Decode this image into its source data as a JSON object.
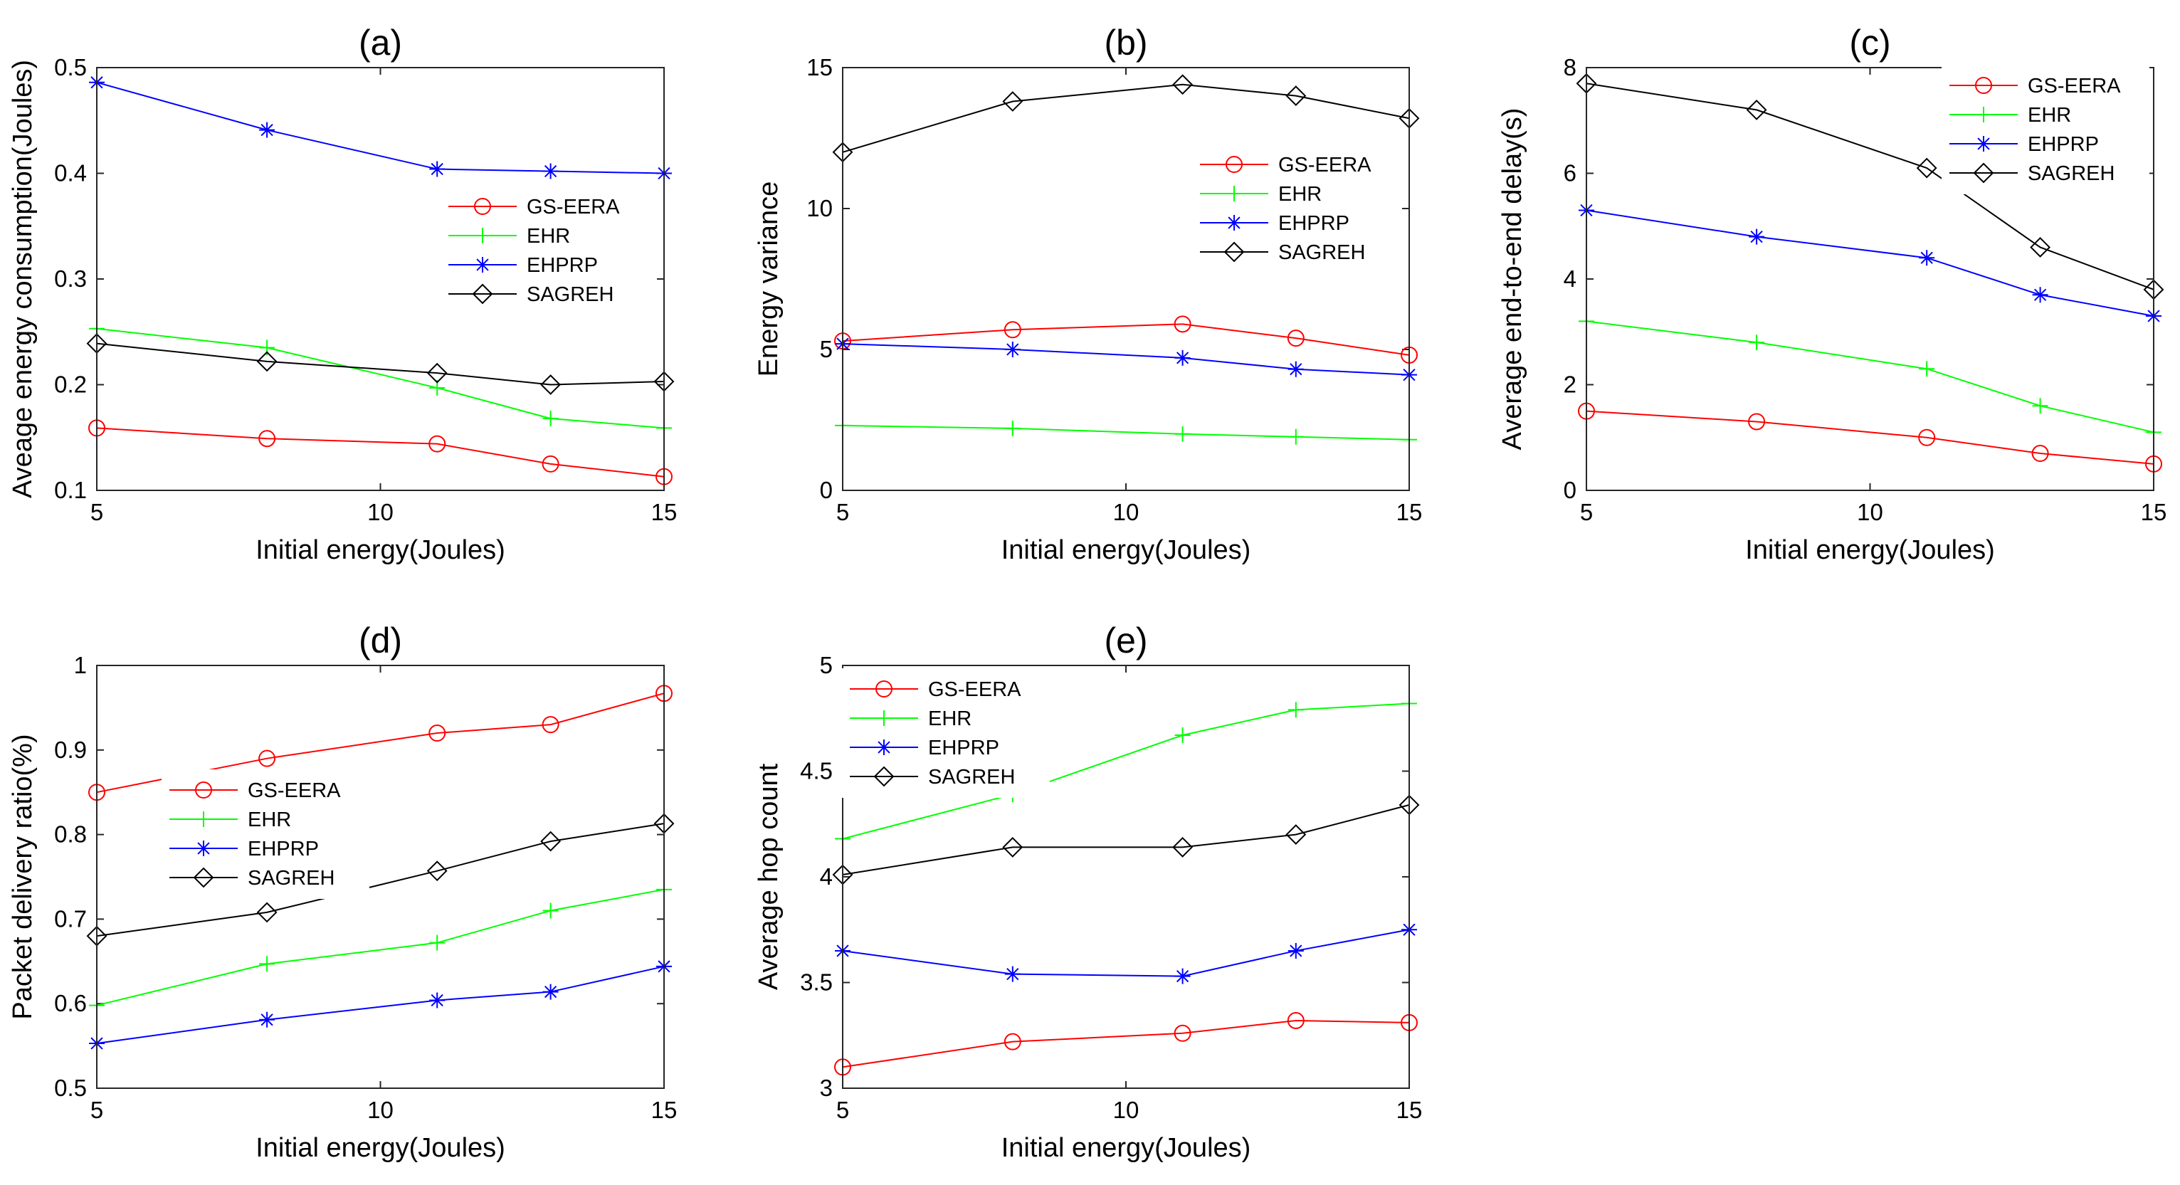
{
  "colors": {
    "GS-EERA": "#ff0000",
    "EHR": "#00ff00",
    "EHPRP": "#0000ff",
    "SAGREH": "#000000"
  },
  "markers": {
    "GS-EERA": "circle",
    "EHR": "plus",
    "EHPRP": "asterisk",
    "SAGREH": "diamond"
  },
  "chart_data": [
    {
      "type": "line",
      "title": "(a)",
      "xlabel": "Initial energy(Joules)",
      "ylabel": "Aveage energy consumption(Joules)",
      "xlim": [
        5,
        15
      ],
      "ylim": [
        0.1,
        0.5
      ],
      "xticks": [
        "5",
        "10",
        "15"
      ],
      "yticks": [
        "0.1",
        "0.2",
        "0.3",
        "0.4",
        "0.5"
      ],
      "legend_position": "middle-right",
      "x": [
        5,
        8,
        11,
        13,
        15
      ],
      "series": [
        {
          "name": "GS-EERA",
          "values": [
            0.159,
            0.149,
            0.144,
            0.125,
            0.113
          ]
        },
        {
          "name": "EHR",
          "values": [
            0.253,
            0.235,
            0.197,
            0.168,
            0.159
          ]
        },
        {
          "name": "EHPRP",
          "values": [
            0.486,
            0.441,
            0.404,
            0.402,
            0.4
          ]
        },
        {
          "name": "SAGREH",
          "values": [
            0.239,
            0.222,
            0.211,
            0.2,
            0.203
          ]
        }
      ]
    },
    {
      "type": "line",
      "title": "(b)",
      "xlabel": "Initial energy(Joules)",
      "ylabel": "Energy variance",
      "xlim": [
        5,
        15
      ],
      "ylim": [
        0,
        15
      ],
      "xticks": [
        "5",
        "10",
        "15"
      ],
      "yticks": [
        "0",
        "5",
        "10",
        "15"
      ],
      "legend_position": "upper-right",
      "x": [
        5,
        8,
        11,
        13,
        15
      ],
      "series": [
        {
          "name": "GS-EERA",
          "values": [
            5.3,
            5.7,
            5.9,
            5.4,
            4.8
          ]
        },
        {
          "name": "EHR",
          "values": [
            2.3,
            2.2,
            2.0,
            1.9,
            1.8
          ]
        },
        {
          "name": "EHPRP",
          "values": [
            5.2,
            5.0,
            4.7,
            4.3,
            4.1
          ]
        },
        {
          "name": "SAGREH",
          "values": [
            12.0,
            13.8,
            14.4,
            14.0,
            13.2
          ]
        }
      ]
    },
    {
      "type": "line",
      "title": "(c)",
      "xlabel": "Initial energy(Joules)",
      "ylabel": "Average end-to-end delay(s)",
      "xlim": [
        5,
        15
      ],
      "ylim": [
        0,
        8
      ],
      "xticks": [
        "5",
        "10",
        "15"
      ],
      "yticks": [
        "0",
        "2",
        "4",
        "6",
        "8"
      ],
      "legend_position": "upper-right",
      "x": [
        5,
        8,
        11,
        13,
        15
      ],
      "series": [
        {
          "name": "GS-EERA",
          "values": [
            1.5,
            1.3,
            1.0,
            0.7,
            0.5
          ]
        },
        {
          "name": "EHR",
          "values": [
            3.2,
            2.8,
            2.3,
            1.6,
            1.1
          ]
        },
        {
          "name": "EHPRP",
          "values": [
            5.3,
            4.8,
            4.4,
            3.7,
            3.3
          ]
        },
        {
          "name": "SAGREH",
          "values": [
            7.7,
            7.2,
            6.1,
            4.6,
            3.8
          ]
        }
      ]
    },
    {
      "type": "line",
      "title": "(d)",
      "xlabel": "Initial energy(Joules)",
      "ylabel": "Packet delivery ratio(%)",
      "xlim": [
        5,
        15
      ],
      "ylim": [
        0.5,
        1
      ],
      "xticks": [
        "5",
        "10",
        "15"
      ],
      "yticks": [
        "0.5",
        "0.6",
        "0.7",
        "0.8",
        "0.9",
        "1"
      ],
      "legend_position": "middle-left",
      "x": [
        5,
        8,
        11,
        13,
        15
      ],
      "series": [
        {
          "name": "GS-EERA",
          "values": [
            0.85,
            0.89,
            0.92,
            0.93,
            0.967
          ]
        },
        {
          "name": "EHR",
          "values": [
            0.598,
            0.647,
            0.672,
            0.71,
            0.735
          ]
        },
        {
          "name": "EHPRP",
          "values": [
            0.553,
            0.581,
            0.604,
            0.614,
            0.644
          ]
        },
        {
          "name": "SAGREH",
          "values": [
            0.68,
            0.708,
            0.757,
            0.792,
            0.813
          ]
        }
      ]
    },
    {
      "type": "line",
      "title": "(e)",
      "xlabel": "Initial energy(Joules)",
      "ylabel": "Average hop count",
      "xlim": [
        5,
        15
      ],
      "ylim": [
        3,
        5
      ],
      "xticks": [
        "5",
        "10",
        "15"
      ],
      "yticks": [
        "3",
        "3.5",
        "4",
        "4.5",
        "5"
      ],
      "legend_position": "upper-left",
      "x": [
        5,
        8,
        11,
        13,
        15
      ],
      "series": [
        {
          "name": "GS-EERA",
          "values": [
            3.1,
            3.22,
            3.26,
            3.32,
            3.31
          ]
        },
        {
          "name": "EHR",
          "values": [
            4.18,
            4.39,
            4.67,
            4.79,
            4.82
          ]
        },
        {
          "name": "EHPRP",
          "values": [
            3.65,
            3.54,
            3.53,
            3.65,
            3.75
          ]
        },
        {
          "name": "SAGREH",
          "values": [
            4.01,
            4.14,
            4.14,
            4.2,
            4.34
          ]
        }
      ]
    }
  ]
}
